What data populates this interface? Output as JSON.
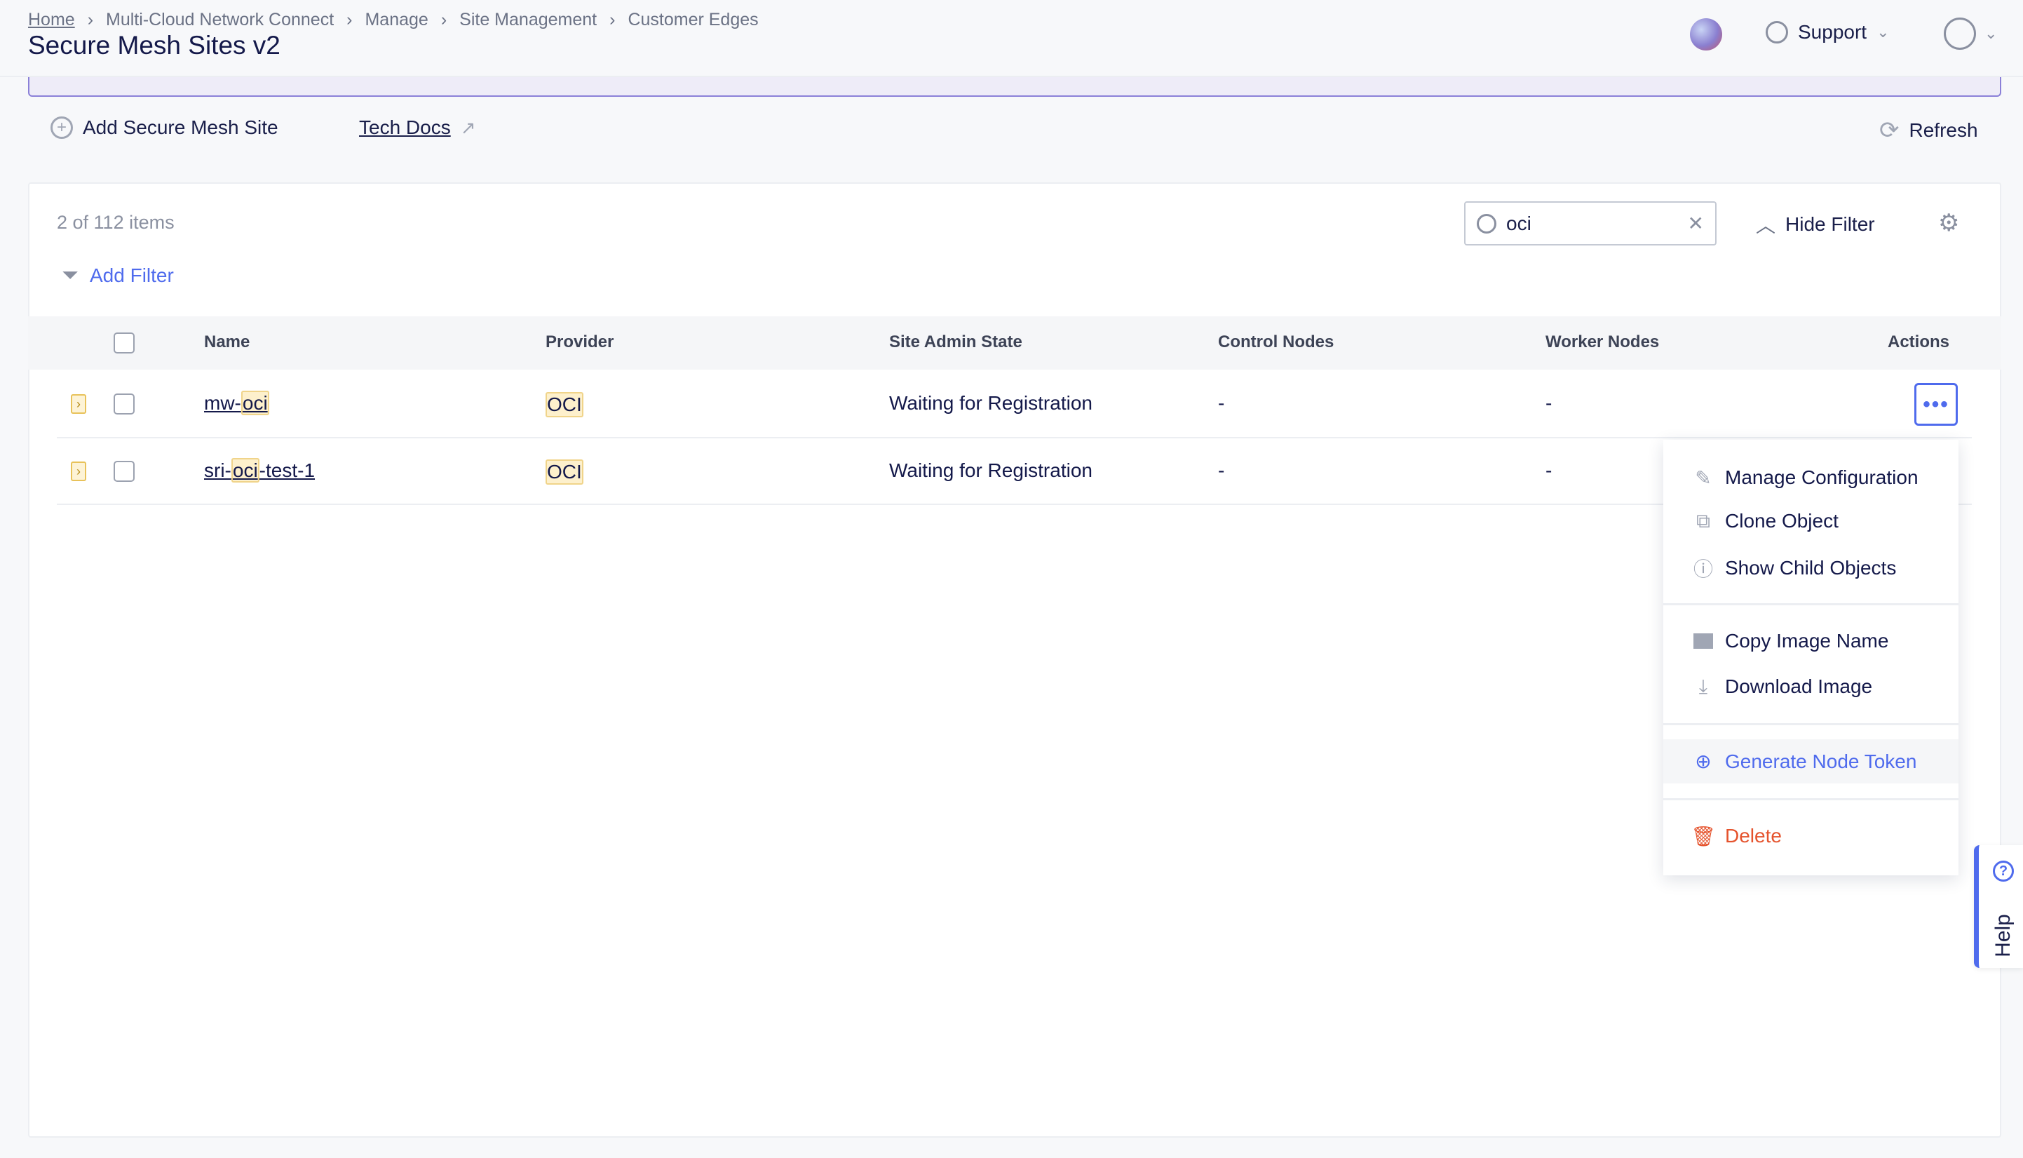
{
  "breadcrumb": [
    "Home",
    "Multi-Cloud Network Connect",
    "Manage",
    "Site Management",
    "Customer Edges"
  ],
  "page_title": "Secure Mesh Sites v2",
  "header": {
    "support": "Support"
  },
  "toolbar": {
    "add": "Add Secure Mesh Site",
    "docs": "Tech Docs",
    "refresh": "Refresh"
  },
  "list": {
    "count": "2 of 112 items",
    "search_value": "oci",
    "hide_filter": "Hide Filter",
    "add_filter": "Add Filter"
  },
  "table": {
    "columns": [
      "Name",
      "Provider",
      "Site Admin State",
      "Control Nodes",
      "Worker Nodes",
      "Actions"
    ],
    "rows": [
      {
        "name_pre": "mw-",
        "name_hl": "oci",
        "name_post": "",
        "provider": "OCI",
        "state": "Waiting for Registration",
        "control": "-",
        "worker": "-"
      },
      {
        "name_pre": "sri-",
        "name_hl": "oci",
        "name_post": "-test-1",
        "provider": "OCI",
        "state": "Waiting for Registration",
        "control": "-",
        "worker": "-"
      }
    ]
  },
  "menu": {
    "items": [
      "Manage Configuration",
      "Clone Object",
      "Show Child Objects",
      "Copy Image Name",
      "Download Image",
      "Generate Node Token",
      "Delete"
    ]
  },
  "help": "Help",
  "colors": {
    "accent": "#4f6bed",
    "danger": "#e5532d",
    "banner_border": "#8b80d8"
  }
}
